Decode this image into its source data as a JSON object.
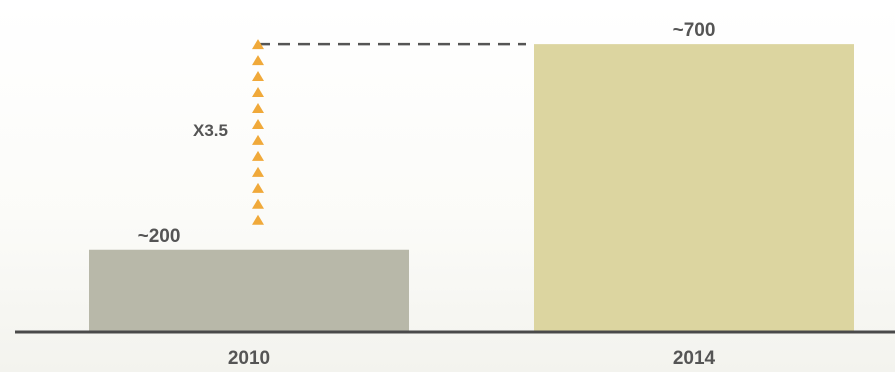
{
  "chart_data": {
    "type": "bar",
    "categories": [
      "2010",
      "2014"
    ],
    "values": [
      200,
      700
    ],
    "data_labels": [
      "~200",
      "~700"
    ],
    "title": "",
    "xlabel": "",
    "ylabel": "",
    "ylim": [
      0,
      800
    ],
    "grid": false,
    "legend": "none",
    "annotation": {
      "label": "X3.5",
      "from_value": 200,
      "to_value": 700
    },
    "colors": {
      "bars": [
        "#b8b8a9",
        "#dcd5a0"
      ],
      "arrow": "#f0a93a",
      "axis": "#4a4a4a",
      "dashed_line": "#555555"
    }
  }
}
